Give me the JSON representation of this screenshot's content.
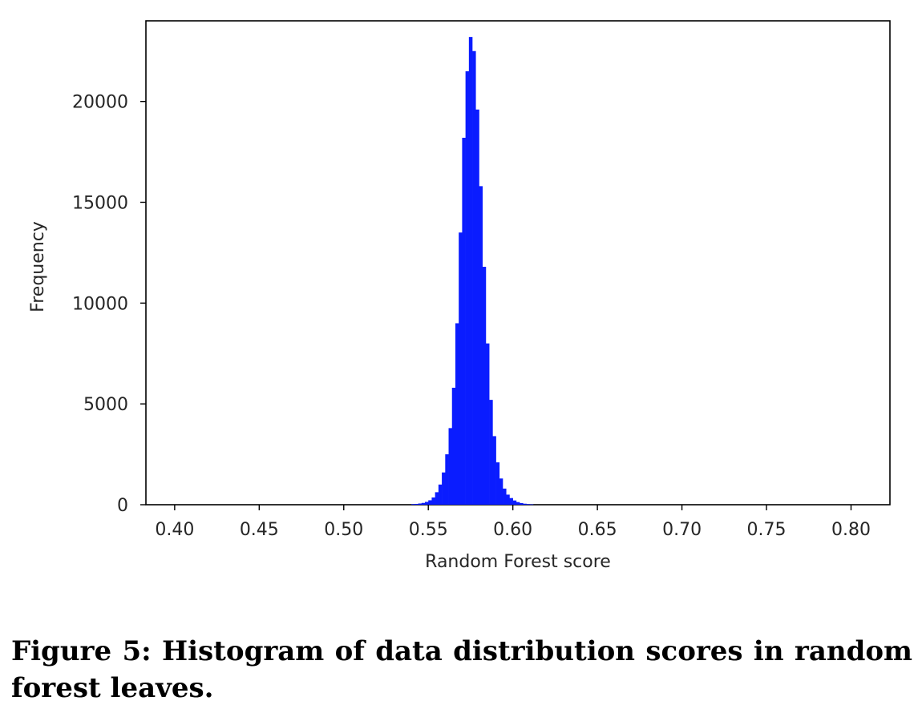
{
  "chart_data": {
    "type": "bar",
    "xlabel": "Random Forest score",
    "ylabel": "Frequency",
    "xlim": [
      0.383,
      0.823
    ],
    "ylim": [
      0,
      24000
    ],
    "xticks": [
      "0.40",
      "0.45",
      "0.50",
      "0.55",
      "0.60",
      "0.65",
      "0.70",
      "0.75",
      "0.80"
    ],
    "yticks": [
      "0",
      "5000",
      "10000",
      "15000",
      "20000"
    ],
    "bar_color": "#0a1cff",
    "grid": false,
    "series": [
      {
        "x": [
          0.54,
          0.542,
          0.544,
          0.546,
          0.548,
          0.55,
          0.552,
          0.554,
          0.556,
          0.558,
          0.56,
          0.562,
          0.564,
          0.566,
          0.568,
          0.57,
          0.572,
          0.574,
          0.576,
          0.578,
          0.58,
          0.582,
          0.584,
          0.586,
          0.588,
          0.59,
          0.592,
          0.594,
          0.596,
          0.598,
          0.6,
          0.602,
          0.604,
          0.606,
          0.608,
          0.61
        ],
        "values": [
          30,
          40,
          60,
          90,
          140,
          220,
          360,
          620,
          1000,
          1600,
          2500,
          3800,
          5800,
          9000,
          13500,
          18200,
          21500,
          23200,
          22500,
          19600,
          15800,
          11800,
          8000,
          5200,
          3400,
          2100,
          1300,
          800,
          500,
          330,
          210,
          130,
          80,
          50,
          30,
          20
        ]
      }
    ]
  },
  "caption": "Figure 5: Histogram of data distribution scores in random forest leaves."
}
